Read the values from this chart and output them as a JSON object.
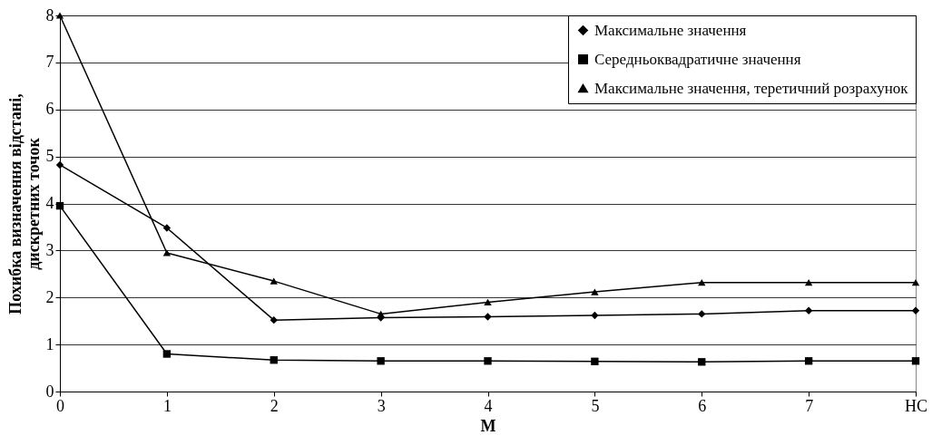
{
  "chart_data": {
    "type": "line",
    "xlabel": "М",
    "ylabel": "Похибка визначення відстані, дискретних точок",
    "categories": [
      "0",
      "1",
      "2",
      "3",
      "4",
      "5",
      "6",
      "7",
      "НС"
    ],
    "ylim": [
      0,
      8
    ],
    "yticks": [
      0,
      1,
      2,
      3,
      4,
      5,
      6,
      7,
      8
    ],
    "grid": "y",
    "legend": "top right",
    "series": [
      {
        "name": "Максимальне значення",
        "color": "#000000",
        "marker": "diamond",
        "values": [
          4.82,
          3.48,
          1.52,
          1.57,
          1.59,
          1.62,
          1.65,
          1.72,
          1.72
        ]
      },
      {
        "name": "Середньоквадратичне значення",
        "color": "#000000",
        "marker": "square",
        "values": [
          3.95,
          0.8,
          0.67,
          0.65,
          0.65,
          0.64,
          0.63,
          0.65,
          0.65
        ]
      },
      {
        "name": "Максимальне значення, теретичний розрахунок",
        "color": "#000000",
        "marker": "triangle",
        "values": [
          8.0,
          2.95,
          2.35,
          1.65,
          1.9,
          2.12,
          2.32,
          2.32,
          2.32
        ]
      }
    ]
  }
}
